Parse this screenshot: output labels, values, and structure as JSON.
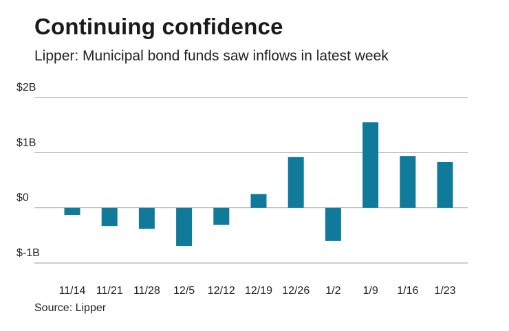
{
  "title": "Continuing confidence",
  "subtitle": "Lipper: Municipal bond funds saw inflows in latest week",
  "source": "Source: Lipper",
  "chart_data": {
    "type": "bar",
    "categories": [
      "11/14",
      "11/21",
      "11/28",
      "12/5",
      "12/12",
      "12/19",
      "12/26",
      "1/2",
      "1/9",
      "1/16",
      "1/23"
    ],
    "values": [
      -0.13,
      -0.33,
      -0.38,
      -0.69,
      -0.31,
      0.25,
      0.92,
      -0.6,
      1.55,
      0.94,
      0.83
    ],
    "units": "billions of dollars",
    "ylim": [
      -1,
      2
    ],
    "y_ticks": [
      {
        "value": 2,
        "label": "$2B"
      },
      {
        "value": 1,
        "label": "$1B"
      },
      {
        "value": 0,
        "label": "$0"
      },
      {
        "value": -1,
        "label": "$-1B"
      }
    ],
    "grid": true,
    "bar_color": "#0f7a99"
  }
}
